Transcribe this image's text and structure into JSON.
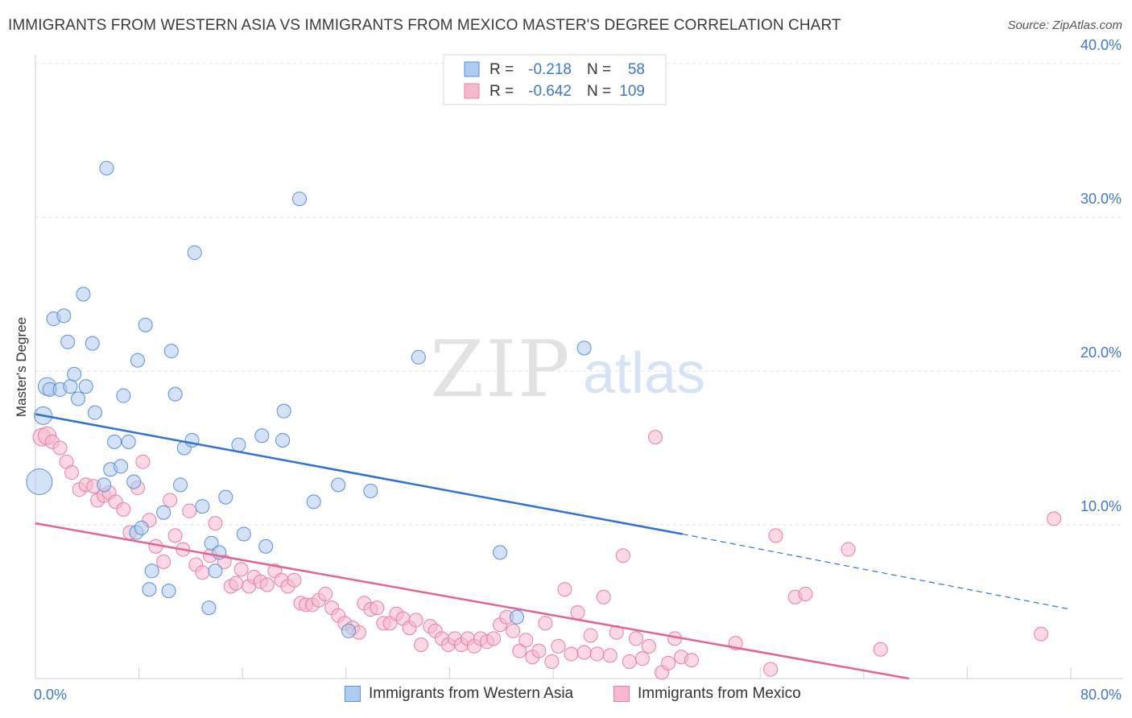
{
  "header": {
    "title": "IMMIGRANTS FROM WESTERN ASIA VS IMMIGRANTS FROM MEXICO MASTER'S DEGREE CORRELATION CHART",
    "source": "Source: ZipAtlas.com"
  },
  "watermark": {
    "zip": "ZIP",
    "atlas": "atlas"
  },
  "colors": {
    "blue_fill": "#aecbf0",
    "blue_stroke": "#5b8fd6",
    "blue_line": "#2f72d0",
    "pink_fill": "#f7b8cc",
    "pink_stroke": "#e580a3",
    "pink_line": "#e06690",
    "tick_text": "#3f78c8",
    "grid": "#dddddd"
  },
  "stats_legend": {
    "rows": [
      {
        "r_label": "R =",
        "r_value": "-0.218",
        "n_label": "N =",
        "n_value": "58",
        "color": "blue"
      },
      {
        "r_label": "R =",
        "r_value": "-0.642",
        "n_label": "N =",
        "n_value": "109",
        "color": "pink"
      }
    ]
  },
  "chart_data": {
    "type": "scatter",
    "title": "IMMIGRANTS FROM WESTERN ASIA VS IMMIGRANTS FROM MEXICO MASTER'S DEGREE CORRELATION CHART",
    "xlabel": "",
    "ylabel": "Master's Degree",
    "xlim": [
      0,
      80
    ],
    "ylim": [
      0,
      40
    ],
    "x_tick_labels": [
      "0.0%",
      "80.0%"
    ],
    "y_ticks": [
      10,
      20,
      30,
      40
    ],
    "y_tick_labels": [
      "10.0%",
      "20.0%",
      "30.0%",
      "40.0%"
    ],
    "grid": true,
    "legend_position": "bottom",
    "series": [
      {
        "name": "Immigrants from Western Asia",
        "color": "blue",
        "trend": {
          "x0": 0,
          "y0": 17.2,
          "x1": 50,
          "y1": 9.4,
          "dash_to_x": 80,
          "dash_to_y": 4.5
        },
        "points": [
          [
            0.3,
            12.8,
            3
          ],
          [
            0.6,
            17.1,
            2
          ],
          [
            0.9,
            19.0,
            2
          ],
          [
            1.1,
            18.8,
            1
          ],
          [
            1.4,
            23.4,
            1
          ],
          [
            1.9,
            18.8,
            1
          ],
          [
            2.2,
            23.6,
            1
          ],
          [
            2.5,
            21.9,
            1
          ],
          [
            2.7,
            19.0,
            1
          ],
          [
            3.0,
            19.8,
            1
          ],
          [
            3.3,
            18.2,
            1
          ],
          [
            3.7,
            25.0,
            1
          ],
          [
            3.9,
            19.0,
            1
          ],
          [
            4.4,
            21.8,
            1
          ],
          [
            4.6,
            17.3,
            1
          ],
          [
            5.3,
            12.6,
            1
          ],
          [
            5.5,
            33.2,
            1
          ],
          [
            5.8,
            13.6,
            1
          ],
          [
            6.1,
            15.4,
            1
          ],
          [
            6.6,
            13.8,
            1
          ],
          [
            6.8,
            18.4,
            1
          ],
          [
            7.2,
            15.4,
            1
          ],
          [
            7.6,
            12.8,
            1
          ],
          [
            7.8,
            9.5,
            1
          ],
          [
            7.9,
            20.7,
            1
          ],
          [
            8.2,
            9.8,
            1
          ],
          [
            8.5,
            23.0,
            1
          ],
          [
            8.8,
            5.8,
            1
          ],
          [
            9.0,
            7.0,
            1
          ],
          [
            9.9,
            10.8,
            1
          ],
          [
            10.3,
            5.7,
            1
          ],
          [
            10.5,
            21.3,
            1
          ],
          [
            10.8,
            18.5,
            1
          ],
          [
            11.2,
            12.6,
            1
          ],
          [
            11.5,
            15.0,
            1
          ],
          [
            12.1,
            15.5,
            1
          ],
          [
            12.3,
            27.7,
            1
          ],
          [
            12.9,
            11.2,
            1
          ],
          [
            13.4,
            4.6,
            1
          ],
          [
            13.6,
            8.8,
            1
          ],
          [
            13.9,
            7.0,
            1
          ],
          [
            14.2,
            8.2,
            1
          ],
          [
            14.7,
            11.8,
            1
          ],
          [
            15.7,
            15.2,
            1
          ],
          [
            16.1,
            9.4,
            1
          ],
          [
            17.5,
            15.8,
            1
          ],
          [
            17.8,
            8.6,
            1
          ],
          [
            19.2,
            17.4,
            1
          ],
          [
            19.1,
            15.5,
            1
          ],
          [
            20.4,
            31.2,
            1
          ],
          [
            21.5,
            11.5,
            1
          ],
          [
            23.4,
            12.6,
            1
          ],
          [
            24.2,
            3.1,
            1
          ],
          [
            25.9,
            12.2,
            1
          ],
          [
            29.6,
            20.9,
            1
          ],
          [
            35.9,
            8.2,
            1
          ],
          [
            42.4,
            21.5,
            1
          ],
          [
            37.2,
            4.0,
            1
          ]
        ]
      },
      {
        "name": "Immigrants from Mexico",
        "color": "pink",
        "trend": {
          "x0": 0,
          "y0": 10.1,
          "x1": 67.5,
          "y1": 0.0
        },
        "points": [
          [
            0.5,
            15.7,
            2
          ],
          [
            0.9,
            15.8,
            2
          ],
          [
            1.3,
            15.4,
            1
          ],
          [
            1.9,
            15.0,
            1
          ],
          [
            2.4,
            14.1,
            1
          ],
          [
            2.8,
            13.4,
            1
          ],
          [
            3.4,
            12.3,
            1
          ],
          [
            3.9,
            12.6,
            1
          ],
          [
            4.5,
            12.5,
            1
          ],
          [
            4.8,
            11.6,
            1
          ],
          [
            5.3,
            11.9,
            1
          ],
          [
            5.7,
            12.1,
            1
          ],
          [
            6.2,
            11.5,
            1
          ],
          [
            6.8,
            11.0,
            1
          ],
          [
            7.3,
            9.5,
            1
          ],
          [
            7.9,
            12.4,
            1
          ],
          [
            8.3,
            14.1,
            1
          ],
          [
            8.8,
            10.3,
            1
          ],
          [
            9.3,
            8.6,
            1
          ],
          [
            9.9,
            7.6,
            1
          ],
          [
            10.4,
            11.6,
            1
          ],
          [
            10.8,
            9.3,
            1
          ],
          [
            11.4,
            8.4,
            1
          ],
          [
            11.9,
            10.9,
            1
          ],
          [
            12.4,
            7.4,
            1
          ],
          [
            12.9,
            6.9,
            1
          ],
          [
            13.5,
            8.0,
            1
          ],
          [
            13.9,
            10.1,
            1
          ],
          [
            14.6,
            7.6,
            1
          ],
          [
            15.1,
            6.0,
            1
          ],
          [
            15.5,
            6.2,
            1
          ],
          [
            15.9,
            7.1,
            1
          ],
          [
            16.5,
            6.0,
            1
          ],
          [
            16.9,
            6.6,
            1
          ],
          [
            17.4,
            6.3,
            1
          ],
          [
            17.9,
            6.1,
            1
          ],
          [
            18.5,
            7.0,
            1
          ],
          [
            19.0,
            6.4,
            1
          ],
          [
            19.5,
            6.0,
            1
          ],
          [
            20.0,
            6.4,
            1
          ],
          [
            20.5,
            4.9,
            1
          ],
          [
            20.9,
            4.8,
            1
          ],
          [
            21.4,
            4.8,
            1
          ],
          [
            21.9,
            5.1,
            1
          ],
          [
            22.4,
            5.5,
            1
          ],
          [
            22.9,
            4.6,
            1
          ],
          [
            23.4,
            4.1,
            1
          ],
          [
            23.9,
            3.6,
            1
          ],
          [
            24.5,
            3.3,
            1
          ],
          [
            25.0,
            3.0,
            1
          ],
          [
            25.4,
            4.9,
            1
          ],
          [
            25.9,
            4.5,
            1
          ],
          [
            26.4,
            4.6,
            1
          ],
          [
            26.9,
            3.6,
            1
          ],
          [
            27.4,
            3.6,
            1
          ],
          [
            27.9,
            4.2,
            1
          ],
          [
            28.4,
            3.9,
            1
          ],
          [
            28.9,
            3.3,
            1
          ],
          [
            29.4,
            3.8,
            1
          ],
          [
            29.8,
            2.2,
            1
          ],
          [
            30.5,
            3.4,
            1
          ],
          [
            30.9,
            3.1,
            1
          ],
          [
            31.4,
            2.6,
            1
          ],
          [
            31.9,
            2.2,
            1
          ],
          [
            32.4,
            2.6,
            1
          ],
          [
            32.9,
            2.2,
            1
          ],
          [
            33.4,
            2.6,
            1
          ],
          [
            33.9,
            2.1,
            1
          ],
          [
            34.4,
            2.6,
            1
          ],
          [
            34.9,
            2.4,
            1
          ],
          [
            35.4,
            2.6,
            1
          ],
          [
            35.9,
            3.5,
            1
          ],
          [
            36.4,
            4.0,
            1
          ],
          [
            36.9,
            3.1,
            1
          ],
          [
            37.4,
            1.8,
            1
          ],
          [
            37.9,
            2.5,
            1
          ],
          [
            38.4,
            1.4,
            1
          ],
          [
            38.9,
            1.8,
            1
          ],
          [
            39.4,
            3.6,
            1
          ],
          [
            39.9,
            1.1,
            1
          ],
          [
            40.4,
            2.1,
            1
          ],
          [
            40.9,
            5.8,
            1
          ],
          [
            41.4,
            1.6,
            1
          ],
          [
            41.9,
            4.3,
            1
          ],
          [
            42.4,
            1.7,
            1
          ],
          [
            42.9,
            2.8,
            1
          ],
          [
            43.4,
            1.6,
            1
          ],
          [
            43.9,
            5.3,
            1
          ],
          [
            44.4,
            1.5,
            1
          ],
          [
            44.9,
            3.0,
            1
          ],
          [
            45.4,
            8.0,
            1
          ],
          [
            45.9,
            1.1,
            1
          ],
          [
            46.4,
            2.6,
            1
          ],
          [
            46.9,
            1.3,
            1
          ],
          [
            47.4,
            2.1,
            1
          ],
          [
            47.9,
            15.7,
            1
          ],
          [
            48.4,
            0.4,
            1
          ],
          [
            48.9,
            1.0,
            1
          ],
          [
            49.4,
            2.6,
            1
          ],
          [
            49.9,
            1.4,
            1
          ],
          [
            50.7,
            1.2,
            1
          ],
          [
            54.1,
            2.3,
            1
          ],
          [
            56.8,
            0.6,
            1
          ],
          [
            57.2,
            9.3,
            1
          ],
          [
            58.7,
            5.3,
            1
          ],
          [
            59.5,
            5.5,
            1
          ],
          [
            62.8,
            8.4,
            1
          ],
          [
            65.3,
            1.9,
            1
          ],
          [
            77.7,
            2.9,
            1
          ],
          [
            78.7,
            10.4,
            1
          ]
        ]
      }
    ]
  }
}
